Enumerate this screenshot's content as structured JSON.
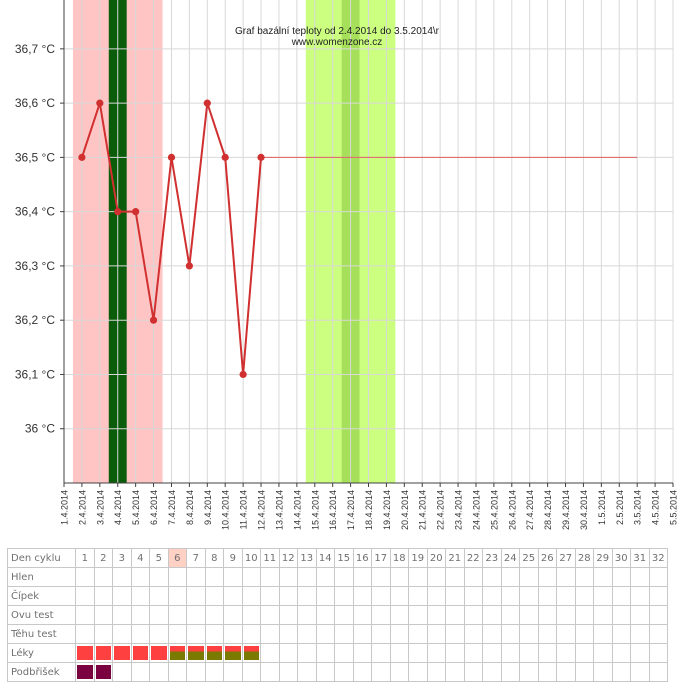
{
  "chart_data": {
    "type": "line",
    "title": "Graf bazální teploty od 2.4.2014 do 3.5.2014\\r",
    "subtitle": "www.womenzone.cz",
    "xlabel": "",
    "ylabel": "",
    "x_ticks": [
      "1.4.2014",
      "2.4.2014",
      "3.4.2014",
      "4.4.2014",
      "5.4.2014",
      "6.4.2014",
      "7.4.2014",
      "8.4.2014",
      "9.4.2014",
      "10.4.2014",
      "11.4.2014",
      "12.4.2014",
      "13.4.2014",
      "14.4.2014",
      "15.4.2014",
      "16.4.2014",
      "17.4.2014",
      "18.4.2014",
      "19.4.2014",
      "20.4.2014",
      "21.4.2014",
      "22.4.2014",
      "23.4.2014",
      "24.4.2014",
      "25.4.2014",
      "26.4.2014",
      "27.4.2014",
      "28.4.2014",
      "29.4.2014",
      "30.4.2014",
      "1.5.2014",
      "2.5.2014",
      "3.5.2014",
      "4.5.2014",
      "5.5.2014"
    ],
    "y_ticks": [
      {
        "v": 36.0,
        "label": "36 °C"
      },
      {
        "v": 36.1,
        "label": "36,1 °C"
      },
      {
        "v": 36.2,
        "label": "36,2 °C"
      },
      {
        "v": 36.3,
        "label": "36,3 °C"
      },
      {
        "v": 36.4,
        "label": "36,4 °C"
      },
      {
        "v": 36.5,
        "label": "36,5 °C"
      },
      {
        "v": 36.6,
        "label": "36,6 °C"
      },
      {
        "v": 36.7,
        "label": "36,7 °C"
      }
    ],
    "ylim": [
      35.9,
      36.79
    ],
    "grid": true,
    "series": [
      {
        "x": [
          "2.4.2014",
          "3.4.2014",
          "4.4.2014",
          "5.4.2014",
          "6.4.2014",
          "7.4.2014",
          "8.4.2014",
          "9.4.2014",
          "10.4.2014",
          "11.4.2014",
          "12.4.2014"
        ],
        "values": [
          36.5,
          36.6,
          36.4,
          36.4,
          36.2,
          36.5,
          36.3,
          36.6,
          36.5,
          36.1,
          36.5
        ],
        "color": "#d03030"
      }
    ],
    "reference_line": {
      "value": 36.5,
      "from": "12.4.2014",
      "to": "3.5.2014",
      "color": "#e06060"
    },
    "bands": [
      {
        "from": "1.4.2014",
        "to": "6.4.2014",
        "color": "#ffc4c4"
      },
      {
        "from": "3.4.2014",
        "to": "4.4.2014",
        "color": "#0a5c0a"
      },
      {
        "from": "14.4.2014",
        "to": "19.4.2014",
        "color": "#ccff80"
      },
      {
        "from": "16.4.2014",
        "to": "17.4.2014",
        "color": "#a6e05a"
      }
    ]
  },
  "cycle_table": {
    "header_label": "Den cyklu",
    "days": [
      "1",
      "2",
      "3",
      "4",
      "5",
      "6",
      "7",
      "8",
      "9",
      "10",
      "11",
      "12",
      "13",
      "14",
      "15",
      "16",
      "17",
      "18",
      "19",
      "20",
      "21",
      "22",
      "23",
      "24",
      "25",
      "26",
      "27",
      "28",
      "29",
      "30",
      "31",
      "32"
    ],
    "highlight_day_index": 5,
    "rows": [
      {
        "label": "Hlen",
        "marks": []
      },
      {
        "label": "Čípek",
        "marks": []
      },
      {
        "label": "Ovu test",
        "marks": []
      },
      {
        "label": "Těhu test",
        "marks": []
      },
      {
        "label": "Léky",
        "marks": [
          {
            "day": 0,
            "kind": "red"
          },
          {
            "day": 1,
            "kind": "red"
          },
          {
            "day": 2,
            "kind": "red"
          },
          {
            "day": 3,
            "kind": "red"
          },
          {
            "day": 4,
            "kind": "red"
          },
          {
            "day": 5,
            "kind": "split"
          },
          {
            "day": 6,
            "kind": "split"
          },
          {
            "day": 7,
            "kind": "split"
          },
          {
            "day": 8,
            "kind": "split"
          },
          {
            "day": 9,
            "kind": "split"
          }
        ]
      },
      {
        "label": "Podbřišek",
        "marks": [
          {
            "day": 0,
            "kind": "wine"
          },
          {
            "day": 1,
            "kind": "wine"
          }
        ]
      }
    ],
    "colors": {
      "red": "#ff4040",
      "wine": "#7a0040",
      "split_top": "#ff4040",
      "split_bottom": "#7a7a00",
      "highlight": "#ffd0c4"
    }
  }
}
